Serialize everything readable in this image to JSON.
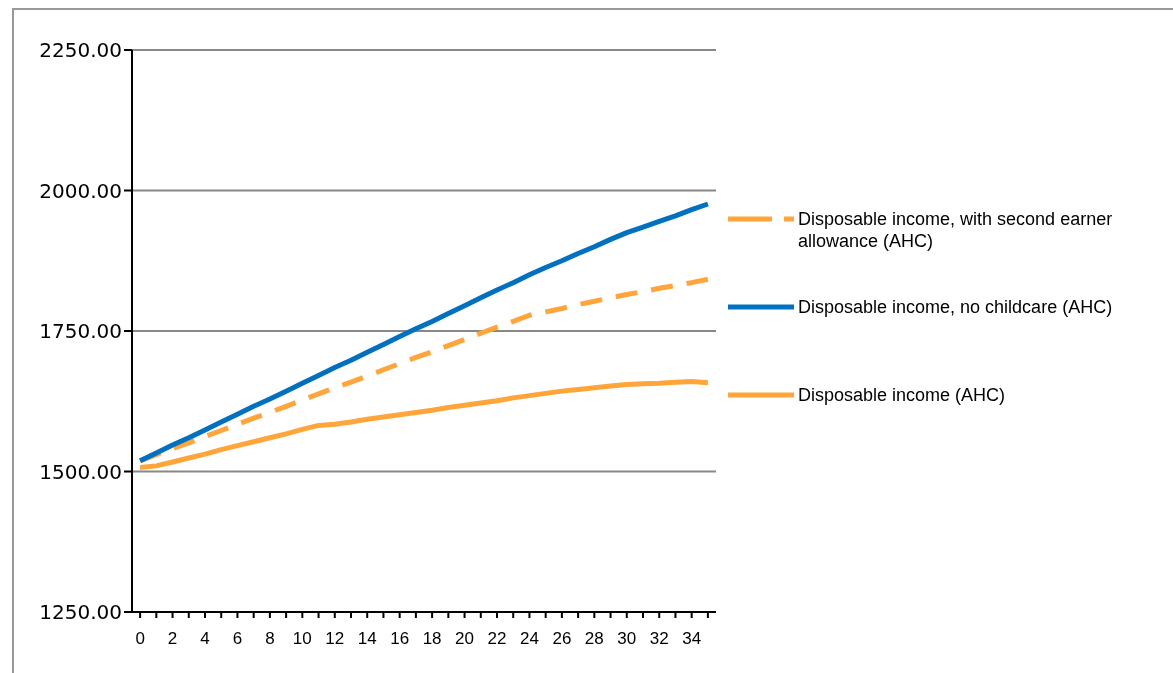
{
  "chart_data": {
    "type": "line",
    "x": [
      0,
      1,
      2,
      3,
      4,
      5,
      6,
      7,
      8,
      9,
      10,
      11,
      12,
      13,
      14,
      15,
      16,
      17,
      18,
      19,
      20,
      21,
      22,
      23,
      24,
      25,
      26,
      27,
      28,
      29,
      30,
      31,
      32,
      33,
      34,
      35
    ],
    "xlim": [
      -0.5,
      35.5
    ],
    "xticks": [
      0,
      {
        "value": 1,
        "label": null
      },
      2,
      {
        "value": 3,
        "label": null
      },
      4,
      {
        "value": 5,
        "label": null
      },
      6,
      {
        "value": 7,
        "label": null
      },
      8,
      {
        "value": 9,
        "label": null
      },
      10,
      {
        "value": 11,
        "label": null
      },
      12,
      {
        "value": 13,
        "label": null
      },
      14,
      {
        "value": 15,
        "label": null
      },
      16,
      {
        "value": 17,
        "label": null
      },
      18,
      {
        "value": 19,
        "label": null
      },
      20,
      {
        "value": 21,
        "label": null
      },
      22,
      {
        "value": 23,
        "label": null
      },
      24,
      {
        "value": 25,
        "label": null
      },
      26,
      {
        "value": 27,
        "label": null
      },
      28,
      {
        "value": 29,
        "label": null
      },
      30,
      {
        "value": 31,
        "label": null
      },
      32,
      {
        "value": 33,
        "label": null
      },
      34,
      {
        "value": 35,
        "label": null
      }
    ],
    "series": [
      {
        "name": "Disposable income, with second earner allowance (AHC)",
        "color": "#ffa53a",
        "line_style": "dashed",
        "values": [
          1519,
          1530,
          1541,
          1551,
          1562,
          1573,
          1584,
          1595,
          1605,
          1616,
          1627,
          1638,
          1649,
          1659,
          1670,
          1681,
          1692,
          1703,
          1713,
          1724,
          1735,
          1746,
          1757,
          1767,
          1778,
          1784,
          1790,
          1797,
          1803,
          1809,
          1815,
          1820,
          1826,
          1831,
          1836,
          1842
        ]
      },
      {
        "name": "Disposable income, no childcare (AHC)",
        "color": "#0070c0",
        "line_style": "solid",
        "values": [
          1519,
          1533,
          1547,
          1560,
          1574,
          1588,
          1602,
          1616,
          1629,
          1643,
          1657,
          1671,
          1685,
          1698,
          1712,
          1726,
          1740,
          1754,
          1767,
          1781,
          1795,
          1809,
          1823,
          1836,
          1850,
          1863,
          1875,
          1888,
          1900,
          1913,
          1925,
          1935,
          1945,
          1955,
          1966,
          1976
        ]
      },
      {
        "name": "Disposable income (AHC)",
        "color": "#ffa53a",
        "line_style": "solid",
        "values": [
          1507,
          1510,
          1517,
          1524,
          1531,
          1539,
          1546,
          1553,
          1560,
          1567,
          1575,
          1582,
          1584,
          1588,
          1593,
          1597,
          1601,
          1605,
          1609,
          1614,
          1618,
          1622,
          1626,
          1631,
          1635,
          1639,
          1643,
          1646,
          1649,
          1652,
          1655,
          1656,
          1657,
          1659,
          1660,
          1658
        ]
      }
    ],
    "ylim": [
      1250,
      2250
    ],
    "yticks": [
      {
        "value": 1250,
        "label": "1250.00"
      },
      {
        "value": 1500,
        "label": "1500.00"
      },
      {
        "value": 1750,
        "label": "1750.00"
      },
      {
        "value": 2000,
        "label": "2000.00"
      },
      {
        "value": 2250,
        "label": "2250.00"
      }
    ],
    "grid": "y",
    "legend": "right",
    "marker": "none"
  }
}
